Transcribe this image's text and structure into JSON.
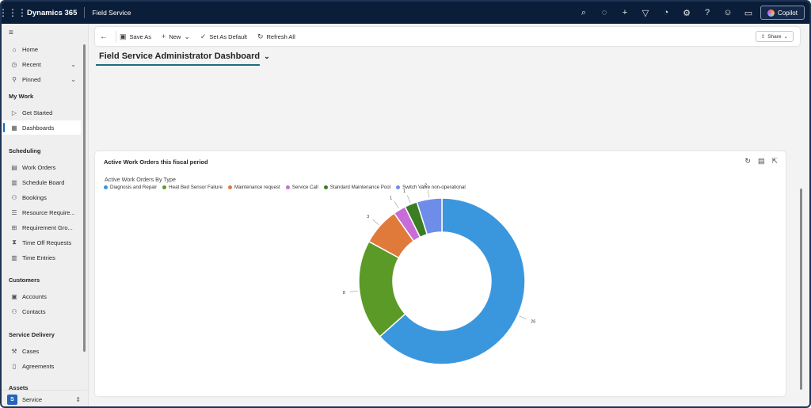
{
  "topbar": {
    "brand": "Dynamics 365",
    "app_name": "Field Service",
    "icons": [
      "search-icon",
      "lightbulb-icon",
      "plus-icon",
      "filter-icon",
      "bell-icon",
      "gear-icon",
      "help-icon",
      "smiley-icon",
      "chat-icon"
    ],
    "copilot_label": "Copilot"
  },
  "sidebar": {
    "top_items": [
      {
        "label": "Home",
        "icon": "home-icon"
      },
      {
        "label": "Recent",
        "icon": "clock-icon",
        "expandable": true
      },
      {
        "label": "Pinned",
        "icon": "pin-icon",
        "expandable": true
      }
    ],
    "sections": [
      {
        "title": "My Work",
        "items": [
          {
            "label": "Get Started",
            "icon": "play-icon"
          },
          {
            "label": "Dashboards",
            "icon": "dashboard-icon",
            "active": true
          }
        ]
      },
      {
        "title": "Scheduling",
        "items": [
          {
            "label": "Work Orders",
            "icon": "clipboard-icon"
          },
          {
            "label": "Schedule Board",
            "icon": "calendar-icon"
          },
          {
            "label": "Bookings",
            "icon": "person-icon"
          },
          {
            "label": "Resource Require...",
            "icon": "list-icon"
          },
          {
            "label": "Requirement Gro...",
            "icon": "group-icon"
          },
          {
            "label": "Time Off Requests",
            "icon": "hourglass-icon"
          },
          {
            "label": "Time Entries",
            "icon": "calendar-icon"
          }
        ]
      },
      {
        "title": "Customers",
        "items": [
          {
            "label": "Accounts",
            "icon": "building-icon"
          },
          {
            "label": "Contacts",
            "icon": "person-icon"
          }
        ]
      },
      {
        "title": "Service Delivery",
        "items": [
          {
            "label": "Cases",
            "icon": "wrench-icon"
          },
          {
            "label": "Agreements",
            "icon": "document-icon"
          }
        ]
      },
      {
        "title": "Assets",
        "items": []
      }
    ],
    "area": {
      "badge": "S",
      "label": "Service"
    }
  },
  "command_bar": {
    "save_as": "Save As",
    "new": "New",
    "set_default": "Set As Default",
    "refresh_all": "Refresh All",
    "share": "Share"
  },
  "dashboard": {
    "title": "Field Service Administrator Dashboard"
  },
  "card": {
    "title": "Active Work Orders this fiscal period",
    "chart_title": "Active Work Orders By Type"
  },
  "chart_data": {
    "type": "pie",
    "donut": true,
    "title": "Active Work Orders By Type",
    "categories": [
      "Diagnosis and Repair",
      "Heat Bed Sensor Failure",
      "Maintenance request",
      "Service Call",
      "Standard Maintenance Pool",
      "Switch Valve non-operational"
    ],
    "values": [
      26,
      8,
      3,
      1,
      1,
      2
    ],
    "colors": [
      "#3b97dd",
      "#5c9a27",
      "#e07a3b",
      "#c86dd7",
      "#3a7d22",
      "#6e8de8"
    ],
    "legend": "top-left"
  }
}
